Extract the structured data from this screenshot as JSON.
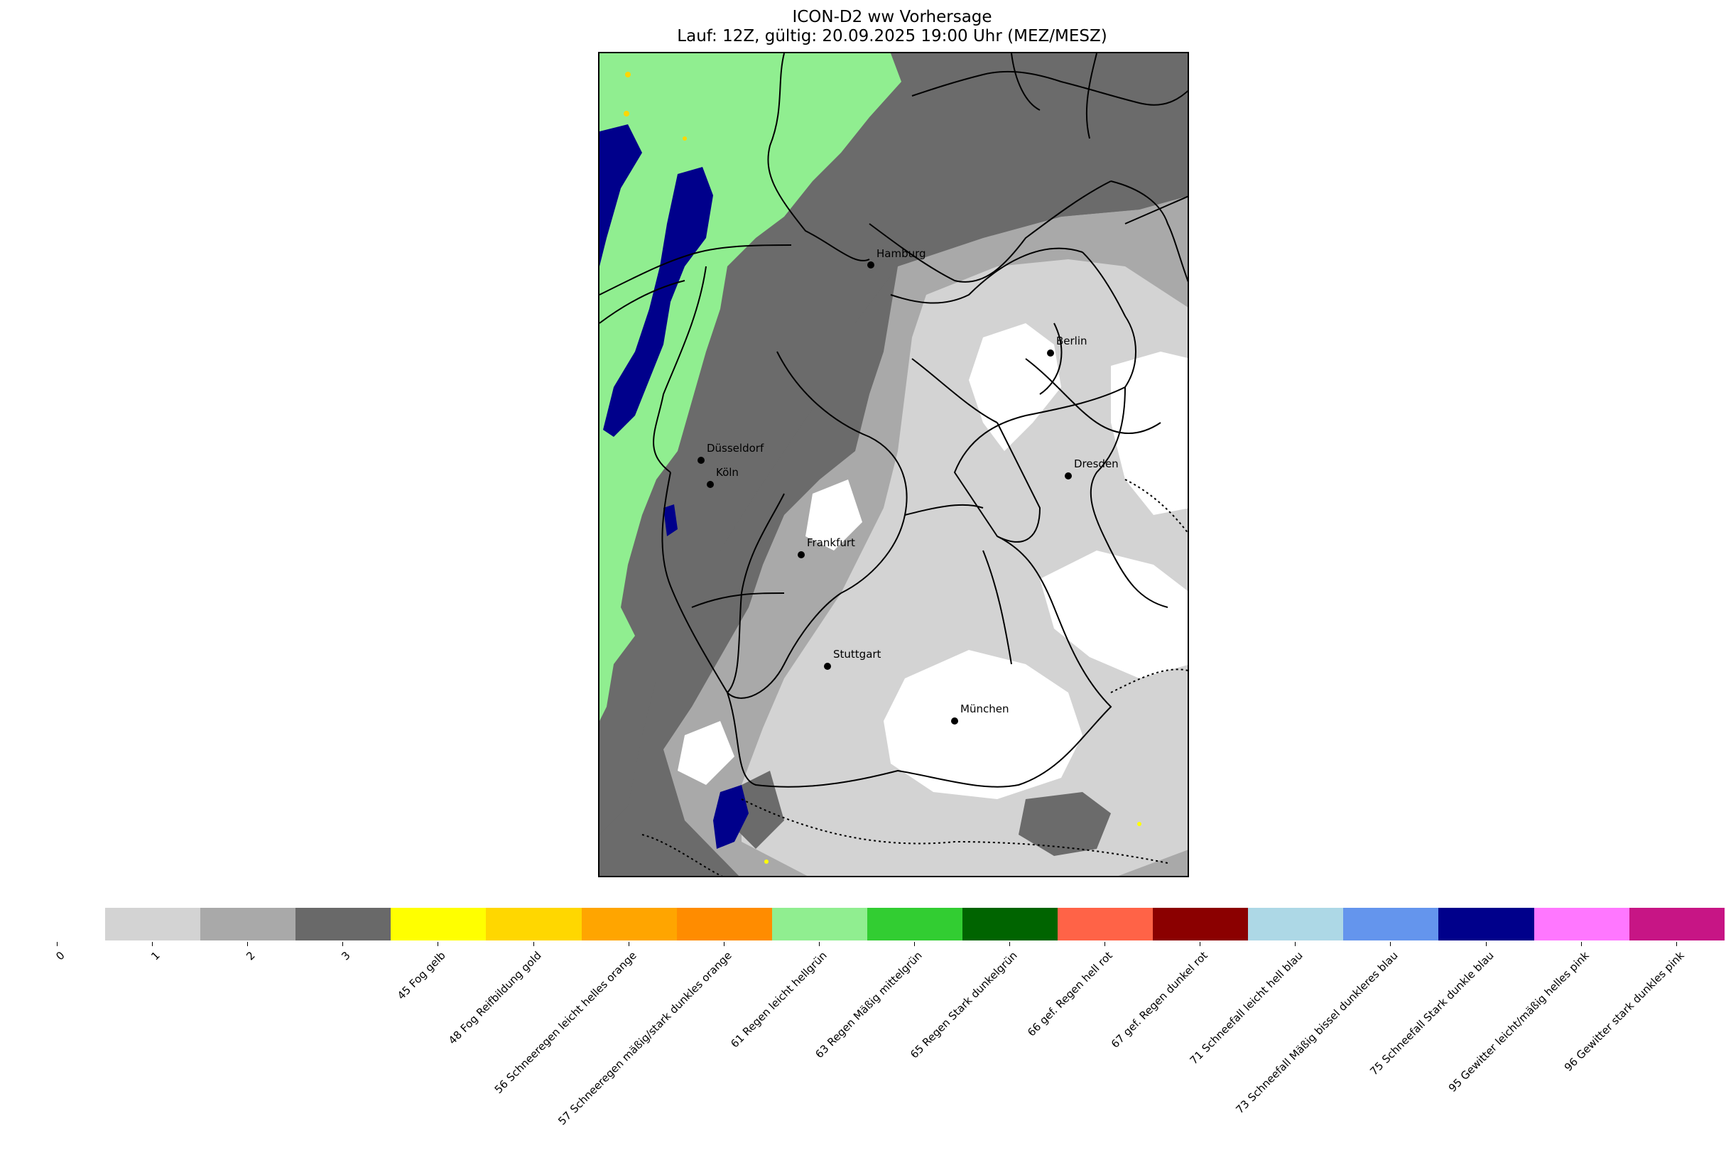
{
  "title": {
    "line1": "ICON-D2 ww Vorhersage",
    "line2": "Lauf: 12Z, gültig: 20.09.2025 19:00 Uhr (MEZ/MESZ)"
  },
  "cities": [
    {
      "name": "Hamburg"
    },
    {
      "name": "Berlin"
    },
    {
      "name": "Düsseldorf"
    },
    {
      "name": "Köln"
    },
    {
      "name": "Dresden"
    },
    {
      "name": "Frankfurt"
    },
    {
      "name": "Stuttgart"
    },
    {
      "name": "München"
    }
  ],
  "legend": {
    "zero_label": "0",
    "entries": [
      {
        "label": "1",
        "color": "#d3d3d3"
      },
      {
        "label": "2",
        "color": "#a9a9a9"
      },
      {
        "label": "3",
        "color": "#696969"
      },
      {
        "label": "45 Fog gelb",
        "color": "#ffff00"
      },
      {
        "label": "48 Fog Reifbildung gold",
        "color": "#ffd700"
      },
      {
        "label": "56 Schneeregen leicht helles orange",
        "color": "#ffa500"
      },
      {
        "label": "57 Schneeregen mäßig/stark dunkles orange",
        "color": "#ff8c00"
      },
      {
        "label": "61 Regen leicht hellgrün",
        "color": "#90ee90"
      },
      {
        "label": "63 Regen Mäßig mittelgrün",
        "color": "#32cd32"
      },
      {
        "label": "65 Regen Stark dunkelgrün",
        "color": "#006400"
      },
      {
        "label": "66 gef. Regen hell rot",
        "color": "#ff6347"
      },
      {
        "label": "67 gef. Regen dunkel rot",
        "color": "#8b0000"
      },
      {
        "label": "71 Schneefall leicht hell blau",
        "color": "#add8e6"
      },
      {
        "label": "73 Schneefall Mäßig bissel dunkleres blau",
        "color": "#6495ed"
      },
      {
        "label": "75 Schneefall Stark dunkle blau",
        "color": "#00008b"
      },
      {
        "label": "95 Gewitter leicht/mäßig helles pink",
        "color": "#ff77ff"
      },
      {
        "label": "96 Gewitter stark dunkles pink",
        "color": "#c71585"
      }
    ]
  }
}
